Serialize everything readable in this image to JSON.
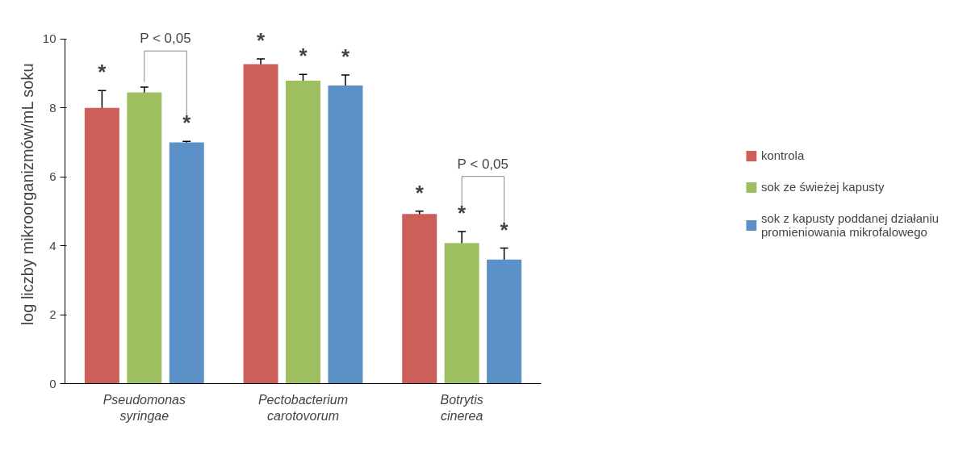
{
  "chart_data": {
    "type": "bar",
    "ylabel": "log liczby mikroorganizmów/mL soku",
    "categories": [
      "Pseudomonas syringae",
      "Pectobacterium carotovorum",
      "Botrytis cinerea"
    ],
    "series": [
      {
        "name": "kontrola",
        "color": "#cd5f5a",
        "values": [
          8.0,
          9.27,
          4.92
        ],
        "errors": [
          0.5,
          0.15,
          0.08
        ],
        "value_labels": [
          "*",
          "*",
          "*"
        ]
      },
      {
        "name": "sok ze świeżej kapusty",
        "color": "#9dbf5f",
        "values": [
          8.45,
          8.79,
          4.08
        ],
        "errors": [
          0.15,
          0.18,
          0.33
        ],
        "value_labels": [
          null,
          "*",
          "*"
        ]
      },
      {
        "name": "sok z kapusty poddanej działaniu promieniowania mikrofalowego",
        "color": "#5b91c6",
        "values": [
          7.0,
          8.65,
          3.6
        ],
        "errors": [
          0.03,
          0.3,
          0.33
        ],
        "value_labels": [
          "*",
          "*",
          "*"
        ]
      }
    ],
    "annotations": [
      "P < 0,05",
      "P < 0,05"
    ],
    "ylim": [
      0,
      10
    ],
    "yticks": [
      0,
      2,
      4,
      6,
      8,
      10
    ],
    "grid": false,
    "legend": "right"
  }
}
